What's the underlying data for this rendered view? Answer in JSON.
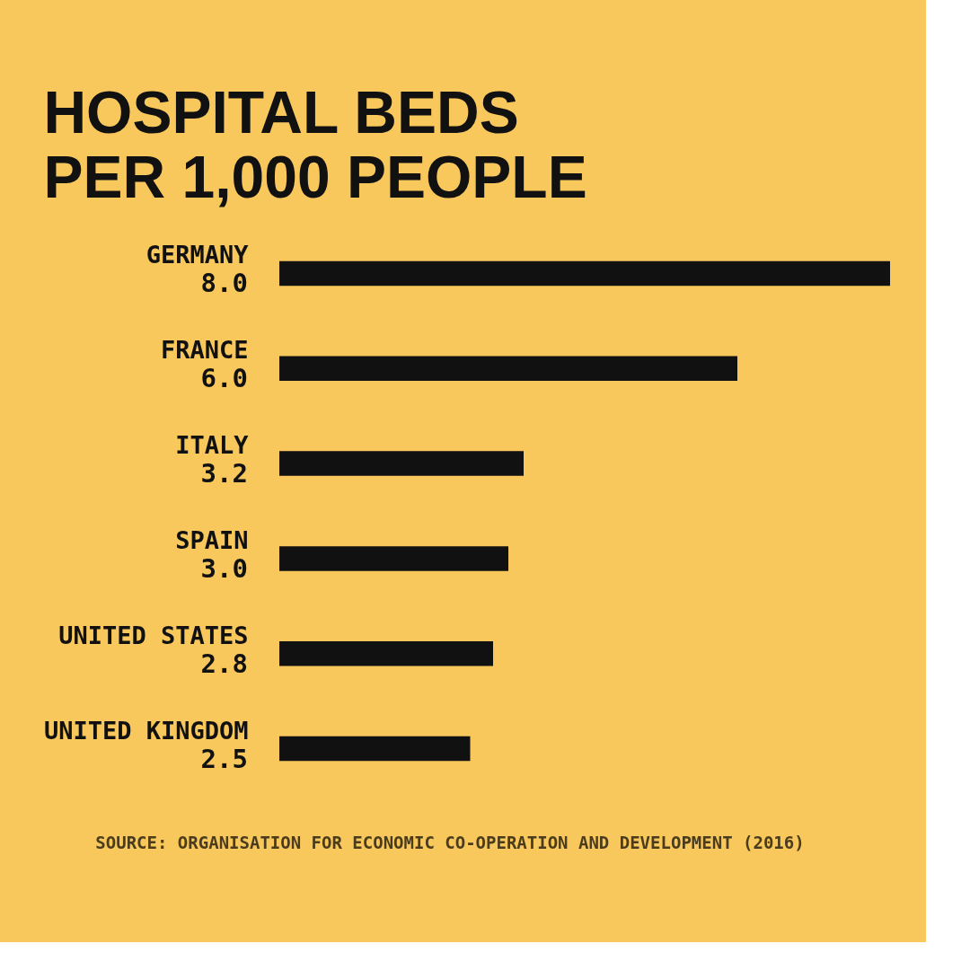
{
  "chart_data": {
    "type": "bar",
    "orientation": "horizontal",
    "title": "HOSPITAL BEDS\nPER 1,000 PEOPLE",
    "categories": [
      "GERMANY",
      "FRANCE",
      "ITALY",
      "SPAIN",
      "UNITED STATES",
      "UNITED KINGDOM"
    ],
    "values": [
      8.0,
      6.0,
      3.2,
      3.0,
      2.8,
      2.5
    ],
    "value_labels": [
      "8.0",
      "6.0",
      "3.2",
      "3.0",
      "2.8",
      "2.5"
    ],
    "color": "#111111",
    "tick_labels": "y",
    "grid": false,
    "annotations": [
      "SOURCE: ORGANISATION FOR ECONOMIC CO-OPERATION AND DEVELOPMENT (2016)"
    ]
  }
}
